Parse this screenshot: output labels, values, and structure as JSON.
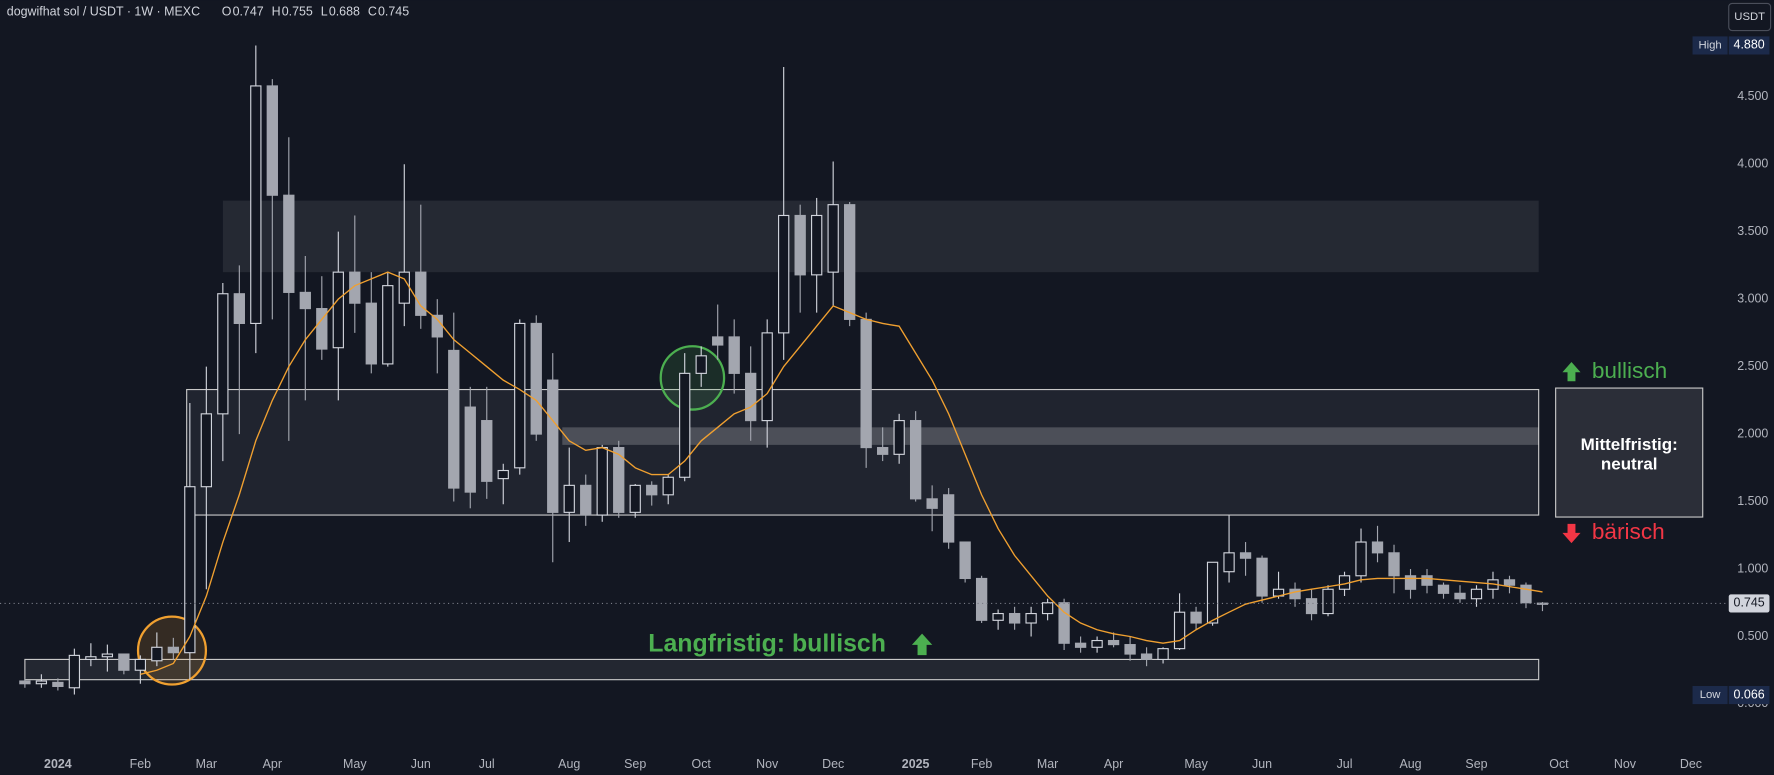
{
  "chart_data": {
    "type": "candlestick",
    "symbol": "dogwifhat sol / USDT · 1W · MEXC",
    "ohlc_keys": [
      "O",
      "H",
      "L",
      "C"
    ],
    "ohlc_values": [
      0.747,
      0.755,
      0.688,
      0.745
    ],
    "currency": "USDT",
    "categories": [
      null,
      null,
      "2024",
      null,
      null,
      null,
      null,
      "Feb",
      null,
      null,
      null,
      "Mar",
      null,
      null,
      null,
      "Apr",
      null,
      null,
      null,
      null,
      "May",
      null,
      null,
      null,
      "Jun",
      null,
      null,
      null,
      "Jul",
      null,
      null,
      null,
      null,
      "Aug",
      null,
      null,
      null,
      "Sep",
      null,
      null,
      null,
      "Oct",
      null,
      null,
      null,
      "Nov",
      null,
      null,
      null,
      "Dec",
      null,
      null,
      null,
      null,
      "2025",
      null,
      null,
      null,
      "Feb",
      null,
      null,
      null,
      "Mar",
      null,
      null,
      null,
      "Apr",
      null,
      null,
      null,
      null,
      "May",
      null,
      null,
      null,
      "Jun",
      null,
      null,
      null,
      null,
      "Jul",
      null,
      null,
      null,
      "Aug",
      null,
      null,
      null,
      "Sep",
      null,
      null,
      null,
      null,
      "Oct",
      null,
      null,
      null,
      "Nov",
      null,
      null,
      null,
      "Dec"
    ],
    "open": [
      0.17,
      0.15,
      0.16,
      0.12,
      0.33,
      0.35,
      0.37,
      0.25,
      0.32,
      0.42,
      0.38,
      1.61,
      2.15,
      3.04,
      2.82,
      4.58,
      3.77,
      3.05,
      2.93,
      2.64,
      3.2,
      2.97,
      2.52,
      2.97,
      3.2,
      2.88,
      2.62,
      2.2,
      2.1,
      1.67,
      1.75,
      2.82,
      2.4,
      1.42,
      1.62,
      1.4,
      1.9,
      1.42,
      1.62,
      1.55,
      1.68,
      2.45,
      2.72,
      2.72,
      2.45,
      2.1,
      2.75,
      3.62,
      3.18,
      3.2,
      3.7,
      2.85,
      1.9,
      1.85,
      2.1,
      1.52,
      1.55,
      1.2,
      0.93,
      0.62,
      0.67,
      0.6,
      0.67,
      0.75,
      0.45,
      0.42,
      0.47,
      0.44,
      0.37,
      0.33,
      0.41,
      0.68,
      0.6,
      0.98,
      1.12,
      1.08,
      0.8,
      0.85,
      0.78,
      0.67,
      0.85,
      0.95,
      1.2,
      1.12,
      0.95,
      0.95,
      0.88,
      0.82,
      0.78,
      0.85,
      0.92,
      0.88,
      0.747,
      null,
      null,
      null,
      null,
      null,
      null,
      null,
      null,
      null
    ],
    "high": [
      0.19,
      0.22,
      0.19,
      0.41,
      0.45,
      0.44,
      0.37,
      0.36,
      0.53,
      0.49,
      2.23,
      2.5,
      3.12,
      3.25,
      4.88,
      4.63,
      4.2,
      3.32,
      3.17,
      3.5,
      3.62,
      3.2,
      3.2,
      4.0,
      3.7,
      3.0,
      2.9,
      2.35,
      2.35,
      1.78,
      2.85,
      2.88,
      2.6,
      1.9,
      1.7,
      1.92,
      1.95,
      1.63,
      1.65,
      1.7,
      2.6,
      2.65,
      2.96,
      2.85,
      2.65,
      2.85,
      4.72,
      3.7,
      3.75,
      4.02,
      3.72,
      2.9,
      2.05,
      2.15,
      2.17,
      1.62,
      1.6,
      1.2,
      0.95,
      0.7,
      0.72,
      0.72,
      0.78,
      0.78,
      0.5,
      0.5,
      0.53,
      0.5,
      0.42,
      0.42,
      0.82,
      0.72,
      1.05,
      1.4,
      1.2,
      1.1,
      0.98,
      0.9,
      0.85,
      0.88,
      0.98,
      1.3,
      1.32,
      1.18,
      1.0,
      1.0,
      0.9,
      0.88,
      0.88,
      0.98,
      0.95,
      0.9,
      0.755,
      null,
      null,
      null,
      null,
      null,
      null,
      null,
      null,
      null
    ],
    "low": [
      0.12,
      0.12,
      0.1,
      0.07,
      0.28,
      0.24,
      0.22,
      0.15,
      0.28,
      0.33,
      0.18,
      0.85,
      1.8,
      2.0,
      2.6,
      2.85,
      1.95,
      2.25,
      2.55,
      2.25,
      2.75,
      2.45,
      2.5,
      2.8,
      2.78,
      2.45,
      1.5,
      1.45,
      1.52,
      1.48,
      1.7,
      1.95,
      1.05,
      1.2,
      1.32,
      1.35,
      1.38,
      1.38,
      1.47,
      1.48,
      1.65,
      2.35,
      2.55,
      2.3,
      1.95,
      1.9,
      2.55,
      2.9,
      2.9,
      2.95,
      2.8,
      1.75,
      1.8,
      1.78,
      1.5,
      1.28,
      1.15,
      0.9,
      0.6,
      0.55,
      0.55,
      0.5,
      0.62,
      0.4,
      0.38,
      0.38,
      0.42,
      0.32,
      0.28,
      0.3,
      0.4,
      0.55,
      0.58,
      0.9,
      0.95,
      0.75,
      0.78,
      0.72,
      0.62,
      0.65,
      0.8,
      0.9,
      1.05,
      0.82,
      0.78,
      0.82,
      0.78,
      0.75,
      0.72,
      0.78,
      0.82,
      0.71,
      0.688,
      null,
      null,
      null,
      null,
      null,
      null,
      null,
      null,
      null
    ],
    "close": [
      0.15,
      0.17,
      0.13,
      0.36,
      0.35,
      0.37,
      0.25,
      0.33,
      0.42,
      0.38,
      1.61,
      2.15,
      3.04,
      2.82,
      4.58,
      3.77,
      3.05,
      2.93,
      2.63,
      3.2,
      2.97,
      2.52,
      3.1,
      3.2,
      2.88,
      2.72,
      1.6,
      1.57,
      1.65,
      1.73,
      2.82,
      2.0,
      1.42,
      1.62,
      1.4,
      1.9,
      1.42,
      1.62,
      1.55,
      1.68,
      2.45,
      2.58,
      2.66,
      2.45,
      2.1,
      2.75,
      3.62,
      3.18,
      3.62,
      3.7,
      2.85,
      1.9,
      1.85,
      2.1,
      1.52,
      1.45,
      1.2,
      0.93,
      0.62,
      0.67,
      0.6,
      0.67,
      0.75,
      0.45,
      0.42,
      0.47,
      0.44,
      0.37,
      0.33,
      0.41,
      0.68,
      0.6,
      1.05,
      1.12,
      1.08,
      0.8,
      0.85,
      0.78,
      0.67,
      0.85,
      0.95,
      1.2,
      1.12,
      0.95,
      0.85,
      0.88,
      0.82,
      0.78,
      0.85,
      0.92,
      0.88,
      0.75,
      0.745,
      null,
      null,
      null,
      null,
      null,
      null,
      null,
      null,
      null
    ],
    "ma": {
      "color": "#f0a030",
      "values": [
        null,
        null,
        null,
        null,
        null,
        null,
        null,
        0.22,
        0.25,
        0.3,
        0.5,
        0.8,
        1.2,
        1.55,
        1.95,
        2.25,
        2.5,
        2.7,
        2.85,
        3.0,
        3.1,
        3.15,
        3.2,
        3.15,
        2.95,
        2.85,
        2.7,
        2.6,
        2.5,
        2.4,
        2.33,
        2.25,
        2.1,
        1.95,
        1.88,
        1.9,
        1.85,
        1.75,
        1.7,
        1.7,
        1.8,
        1.95,
        2.05,
        2.15,
        2.2,
        2.3,
        2.5,
        2.65,
        2.8,
        2.95,
        2.9,
        2.85,
        2.82,
        2.8,
        2.6,
        2.4,
        2.15,
        1.85,
        1.55,
        1.3,
        1.1,
        0.95,
        0.8,
        0.68,
        0.6,
        0.55,
        0.52,
        0.5,
        0.47,
        0.45,
        0.47,
        0.55,
        0.62,
        0.68,
        0.74,
        0.77,
        0.8,
        0.83,
        0.85,
        0.87,
        0.89,
        0.92,
        0.93,
        0.93,
        0.93,
        0.93,
        0.92,
        0.91,
        0.9,
        0.89,
        0.87,
        0.85,
        0.83,
        null,
        null,
        null,
        null,
        null,
        null,
        null,
        null,
        null
      ]
    },
    "up_color": "#d1d4dc",
    "down_color": "#a3a6af",
    "ylim": [
      -0.3,
      5.2
    ],
    "yticks": [
      {
        "value": 0,
        "label": "0.000"
      },
      {
        "value": 0.5,
        "label": "0.500"
      },
      {
        "value": 1,
        "label": "1.000"
      },
      {
        "value": 1.5,
        "label": "1.500"
      },
      {
        "value": 2,
        "label": "2.000"
      },
      {
        "value": 2.5,
        "label": "2.500"
      },
      {
        "value": 3,
        "label": "3.000"
      },
      {
        "value": 3.5,
        "label": "3.500"
      },
      {
        "value": 4,
        "label": "4.000"
      },
      {
        "value": 4.5,
        "label": "4.500"
      }
    ],
    "high_marker": {
      "label": "High",
      "value": 4.88,
      "value_label": "4.880"
    },
    "low_marker": {
      "label": "Low",
      "value": 0.066
    },
    "last_price": 0.745,
    "zones": [
      {
        "low": 3.2,
        "high": 3.73
      },
      {
        "low": 1.4,
        "high": 2.33
      },
      {
        "low": 1.92,
        "high": 2.05
      },
      {
        "low": 0.18,
        "high": 0.33
      }
    ],
    "annotations": {
      "bullish": "bullisch",
      "neutral": [
        "Mittelfristig:",
        "neutral"
      ],
      "bearish": "bärisch",
      "long_term": "Langfristig: bullisch"
    }
  }
}
